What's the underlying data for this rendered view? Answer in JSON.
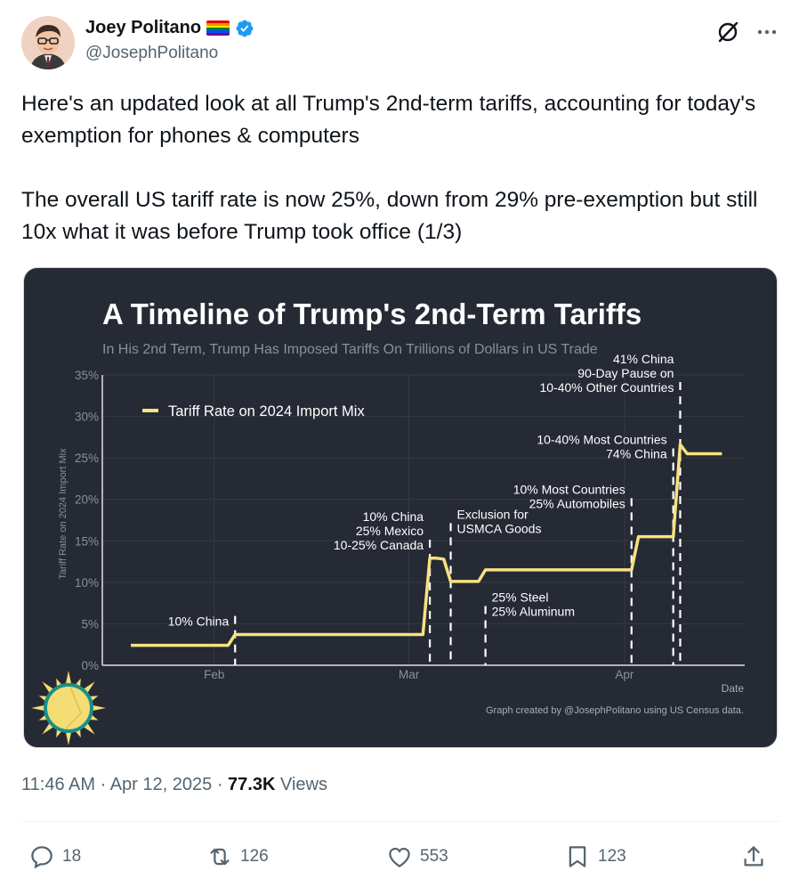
{
  "author": {
    "name": "Joey Politano",
    "handle": "@JosephPolitano",
    "verified": true
  },
  "tweet": {
    "text": "Here's an updated look at all Trump's 2nd-term tariffs, accounting for today's exemption for phones & computers\n\nThe overall US tariff rate is now 25%, down from 29% pre-exemption but still 10x what it was before Trump took office (1/3)"
  },
  "meta": {
    "time": "11:46 AM",
    "date": "Apr 12, 2025",
    "views_count": "77.3K",
    "views_label": "Views"
  },
  "actions": {
    "replies": "18",
    "reposts": "126",
    "likes": "553",
    "bookmarks": "123"
  },
  "colors": {
    "chart_bg": "#262a34",
    "line": "#f6e27f",
    "accent": "#1d9bf0",
    "muted": "#536471"
  },
  "chart_data": {
    "type": "line",
    "title": "A Timeline of Trump's 2nd-Term Tariffs",
    "subtitle": "In His 2nd Term, Trump Has Imposed Tariffs On Trillions of Dollars in US Trade",
    "xlabel": "Date",
    "ylabel": "Tariff Rate on 2024 Import Mix",
    "ylim": [
      0,
      35
    ],
    "yticks": [
      "0%",
      "5%",
      "10%",
      "15%",
      "20%",
      "25%",
      "30%",
      "35%"
    ],
    "xticks": [
      {
        "label": "Feb",
        "date": "2025-02-01"
      },
      {
        "label": "Mar",
        "date": "2025-03-01"
      },
      {
        "label": "Apr",
        "date": "2025-04-01"
      }
    ],
    "xlim": [
      "2025-01-20",
      "2025-04-17"
    ],
    "grid": true,
    "legend": "top-left",
    "series": [
      {
        "name": "Tariff Rate on 2024 Import Mix",
        "points": [
          [
            "2025-01-20",
            2.4
          ],
          [
            "2025-02-03",
            2.4
          ],
          [
            "2025-02-04",
            3.7
          ],
          [
            "2025-03-02",
            3.7
          ],
          [
            "2025-03-03",
            3.7
          ],
          [
            "2025-03-04",
            12.9
          ],
          [
            "2025-03-05",
            12.9
          ],
          [
            "2025-03-06",
            12.8
          ],
          [
            "2025-03-07",
            10.1
          ],
          [
            "2025-03-11",
            10.1
          ],
          [
            "2025-03-12",
            11.5
          ],
          [
            "2025-04-01",
            11.5
          ],
          [
            "2025-04-02",
            11.5
          ],
          [
            "2025-04-03",
            15.5
          ],
          [
            "2025-04-07",
            15.5
          ],
          [
            "2025-04-08",
            15.5
          ],
          [
            "2025-04-09",
            26.6
          ],
          [
            "2025-04-10",
            25.5
          ],
          [
            "2025-04-15",
            25.5
          ]
        ]
      }
    ],
    "annotations": [
      {
        "date": "2025-02-04",
        "lines": [
          "10% China"
        ],
        "side": "left",
        "anchor_value": 5.3
      },
      {
        "date": "2025-03-04",
        "lines": [
          "10% China",
          "25% Mexico",
          "10-25% Canada"
        ],
        "side": "left",
        "anchor_value": 14.5
      },
      {
        "date": "2025-03-07",
        "lines": [
          "Exclusion for",
          "USMCA Goods"
        ],
        "side": "right",
        "anchor_value": 16.5
      },
      {
        "date": "2025-03-12",
        "lines": [
          "25% Steel",
          "25% Aluminum"
        ],
        "side": "right",
        "anchor_value": 6.5
      },
      {
        "date": "2025-04-02",
        "lines": [
          "10% Most Countries",
          "25% Automobiles"
        ],
        "side": "left",
        "anchor_value": 19.5
      },
      {
        "date": "2025-04-08",
        "lines": [
          "10-40% Most Countries",
          "74% China"
        ],
        "side": "left",
        "anchor_value": 25.5
      },
      {
        "date": "2025-04-09",
        "lines": [
          "41% China",
          "90-Day Pause on",
          "10-40% Other Countries"
        ],
        "side": "left",
        "anchor_value": 33.5
      }
    ],
    "credit": "Graph created by @JosephPolitano using US Census data."
  }
}
